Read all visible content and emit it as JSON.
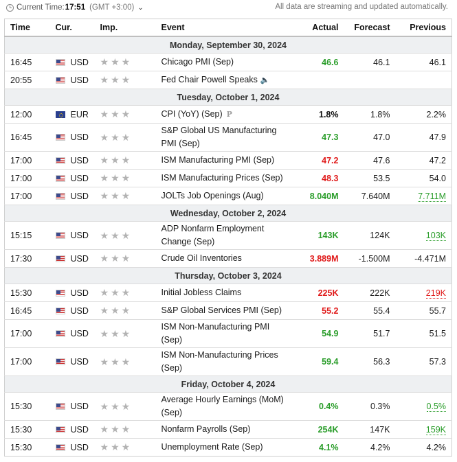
{
  "topbar": {
    "label": "Current Time:",
    "time": "17:51",
    "gmt": "(GMT +3:00)",
    "dropdown": "⌄",
    "notice": "All data are streaming and updated automatically."
  },
  "columns": {
    "time": "Time",
    "cur": "Cur.",
    "imp": "Imp.",
    "event": "Event",
    "actual": "Actual",
    "forecast": "Forecast",
    "previous": "Previous"
  },
  "star": "★",
  "speaker": "🔈",
  "pre": "P",
  "colors": {
    "green": "#2a9d2a",
    "red": "#e01a1a",
    "date_bg": "#eef0f2"
  },
  "rows": [
    {
      "type": "date",
      "label": "Monday, September 30, 2024"
    },
    {
      "type": "event",
      "time": "16:45",
      "flag": "us",
      "cur": "USD",
      "event": "Chicago PMI (Sep)",
      "actual": "46.6",
      "actual_color": "green",
      "forecast": "46.1",
      "previous": "46.1",
      "previous_color": ""
    },
    {
      "type": "event",
      "time": "20:55",
      "flag": "us",
      "cur": "USD",
      "event": "Fed Chair Powell Speaks",
      "icon": "speaker-icon",
      "actual": "",
      "actual_color": "",
      "forecast": "",
      "previous": "",
      "previous_color": ""
    },
    {
      "type": "date",
      "label": "Tuesday, October 1, 2024"
    },
    {
      "type": "event",
      "time": "12:00",
      "flag": "eu",
      "cur": "EUR",
      "event": "CPI (YoY) (Sep)",
      "icon": "preliminary-icon",
      "actual": "1.8%",
      "actual_color": "black",
      "forecast": "1.8%",
      "previous": "2.2%",
      "previous_color": ""
    },
    {
      "type": "event",
      "tall": true,
      "time": "16:45",
      "flag": "us",
      "cur": "USD",
      "event": "S&P Global US Manufacturing PMI (Sep)",
      "actual": "47.3",
      "actual_color": "green",
      "forecast": "47.0",
      "previous": "47.9",
      "previous_color": ""
    },
    {
      "type": "event",
      "time": "17:00",
      "flag": "us",
      "cur": "USD",
      "event": "ISM Manufacturing PMI (Sep)",
      "actual": "47.2",
      "actual_color": "red",
      "forecast": "47.6",
      "previous": "47.2",
      "previous_color": ""
    },
    {
      "type": "event",
      "time": "17:00",
      "flag": "us",
      "cur": "USD",
      "event": "ISM Manufacturing Prices (Sep)",
      "actual": "48.3",
      "actual_color": "red",
      "forecast": "53.5",
      "previous": "54.0",
      "previous_color": ""
    },
    {
      "type": "event",
      "time": "17:00",
      "flag": "us",
      "cur": "USD",
      "event": "JOLTs Job Openings (Aug)",
      "actual": "8.040M",
      "actual_color": "green",
      "forecast": "7.640M",
      "previous": "7.711M",
      "previous_color": "green"
    },
    {
      "type": "date",
      "label": "Wednesday, October 2, 2024"
    },
    {
      "type": "event",
      "tall": true,
      "time": "15:15",
      "flag": "us",
      "cur": "USD",
      "event": "ADP Nonfarm Employment Change (Sep)",
      "actual": "143K",
      "actual_color": "green",
      "forecast": "124K",
      "previous": "103K",
      "previous_color": "green"
    },
    {
      "type": "event",
      "time": "17:30",
      "flag": "us",
      "cur": "USD",
      "event": "Crude Oil Inventories",
      "actual": "3.889M",
      "actual_color": "red",
      "forecast": "-1.500M",
      "previous": "-4.471M",
      "previous_color": ""
    },
    {
      "type": "date",
      "label": "Thursday, October 3, 2024"
    },
    {
      "type": "event",
      "time": "15:30",
      "flag": "us",
      "cur": "USD",
      "event": "Initial Jobless Claims",
      "actual": "225K",
      "actual_color": "red",
      "forecast": "222K",
      "previous": "219K",
      "previous_color": "red"
    },
    {
      "type": "event",
      "time": "16:45",
      "flag": "us",
      "cur": "USD",
      "event": "S&P Global Services PMI (Sep)",
      "actual": "55.2",
      "actual_color": "red",
      "forecast": "55.4",
      "previous": "55.7",
      "previous_color": ""
    },
    {
      "type": "event",
      "tall": true,
      "time": "17:00",
      "flag": "us",
      "cur": "USD",
      "event": "ISM Non-Manufacturing PMI (Sep)",
      "actual": "54.9",
      "actual_color": "green",
      "forecast": "51.7",
      "previous": "51.5",
      "previous_color": ""
    },
    {
      "type": "event",
      "tall": true,
      "time": "17:00",
      "flag": "us",
      "cur": "USD",
      "event": "ISM Non-Manufacturing Prices (Sep)",
      "actual": "59.4",
      "actual_color": "green",
      "forecast": "56.3",
      "previous": "57.3",
      "previous_color": ""
    },
    {
      "type": "date",
      "label": "Friday, October 4, 2024"
    },
    {
      "type": "event",
      "tall": true,
      "time": "15:30",
      "flag": "us",
      "cur": "USD",
      "event": "Average Hourly Earnings (MoM) (Sep)",
      "actual": "0.4%",
      "actual_color": "green",
      "forecast": "0.3%",
      "previous": "0.5%",
      "previous_color": "green"
    },
    {
      "type": "event",
      "time": "15:30",
      "flag": "us",
      "cur": "USD",
      "event": "Nonfarm Payrolls (Sep)",
      "actual": "254K",
      "actual_color": "green",
      "forecast": "147K",
      "previous": "159K",
      "previous_color": "green"
    },
    {
      "type": "event",
      "time": "15:30",
      "flag": "us",
      "cur": "USD",
      "event": "Unemployment Rate (Sep)",
      "actual": "4.1%",
      "actual_color": "green",
      "forecast": "4.2%",
      "previous": "4.2%",
      "previous_color": ""
    }
  ]
}
